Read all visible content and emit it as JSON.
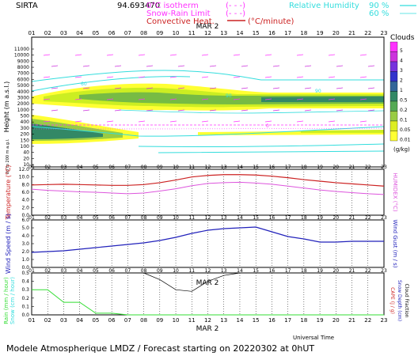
{
  "header": {
    "station": "SIRTA",
    "coord": "94.693470",
    "legend_iso": "0°C isotherm",
    "legend_iso_sym": "(- - -)",
    "legend_snow": "Snow-Rain Limit",
    "legend_snow_sym": "(- - -)",
    "legend_conv": "Convective Heat.",
    "legend_conv_unit": "(°C/minute)",
    "rh_label": "Relative Humidity",
    "rh_90": "90 %",
    "rh_60": "60 %"
  },
  "footer": {
    "text": "Modele Atmospherique LMDZ / Forecast starting on 20220302 at 0hUT",
    "time_label": "Universal Time",
    "date_label": "MAR  2"
  },
  "axes": {
    "hours": [
      "01",
      "02",
      "03",
      "04",
      "05",
      "06",
      "07",
      "08",
      "09",
      "10",
      "11",
      "12",
      "13",
      "14",
      "15",
      "16",
      "17",
      "18",
      "19",
      "20",
      "21",
      "22",
      "23"
    ],
    "date_label": "MAR  2"
  },
  "colors": {
    "temperature": "#cc2222",
    "humidex": "#dd55dd",
    "wind": "#2222bb",
    "rain": "#33dd33",
    "cloud": "#000000",
    "rh": "#33dddd",
    "isotherm": "#ff33ff",
    "cloud_scale": [
      "#ffff33",
      "#ddee22",
      "#99cc44",
      "#55aa55",
      "#338866",
      "#336699",
      "#3333cc",
      "#7733dd",
      "#cc33dd",
      "#ff33ff"
    ]
  },
  "chart_data": [
    {
      "type": "heatmap",
      "panel": "clouds",
      "ylabel": "Height  (m a.s.l.)",
      "ylabel2": "Up to 200 m a.g.l.",
      "yticks": [
        "11000",
        "10000",
        "9000",
        "8000",
        "7000",
        "6000",
        "5000",
        "4000",
        "3000",
        "2000",
        "1000",
        "500",
        "400",
        "300",
        "200",
        "150",
        "100",
        "40",
        "20",
        "10"
      ],
      "legend_title": "Clouds",
      "legend_unit": "(g/kg)",
      "legend_ticks": [
        "5",
        "4",
        "3",
        "2",
        "1",
        "0.5",
        "0.2",
        "0.1",
        "0.05",
        "0.01"
      ],
      "rh_contour_labels": [
        "60",
        "90"
      ],
      "iso_label": "0"
    },
    {
      "type": "line",
      "panel": "temperature",
      "ylabel": "Temperature (°C)",
      "ylabel_right": "HUMIDEX (°C)",
      "yticks": [
        "0.0",
        "2.0",
        "4.0",
        "6.0",
        "8.0",
        "10.0",
        "12.0"
      ],
      "ylim": [
        0,
        12
      ],
      "x": [
        1,
        2,
        3,
        4,
        5,
        6,
        7,
        8,
        9,
        10,
        11,
        12,
        13,
        14,
        15,
        16,
        17,
        18,
        19,
        20,
        21,
        22,
        23
      ],
      "series": [
        {
          "values": [
            7.9,
            8.0,
            8.1,
            8.0,
            7.9,
            7.8,
            7.8,
            8.0,
            8.5,
            9.2,
            10.0,
            10.4,
            10.6,
            10.6,
            10.5,
            10.2,
            9.8,
            9.3,
            8.9,
            8.5,
            8.2,
            7.9,
            7.6
          ]
        },
        {
          "values": [
            6.8,
            6.5,
            6.3,
            6.1,
            6.0,
            5.8,
            5.6,
            5.8,
            6.3,
            6.9,
            7.7,
            8.3,
            8.5,
            8.6,
            8.4,
            8.1,
            7.6,
            7.1,
            6.6,
            6.2,
            5.9,
            5.6,
            5.4
          ]
        }
      ]
    },
    {
      "type": "line",
      "panel": "wind",
      "ylabel": "Wind Speed (m / s)",
      "ylabel_right": "Wind Gust (m / s)",
      "yticks": [
        "0.0",
        "1.0",
        "2.0",
        "3.0",
        "4.0",
        "5.0",
        "6.0"
      ],
      "ylim": [
        0,
        6
      ],
      "x": [
        1,
        2,
        3,
        4,
        5,
        6,
        7,
        8,
        9,
        10,
        11,
        12,
        13,
        14,
        15,
        16,
        17,
        18,
        19,
        20,
        21,
        22,
        23
      ],
      "series": [
        {
          "values": [
            1.9,
            2.0,
            2.1,
            2.3,
            2.5,
            2.7,
            2.9,
            3.1,
            3.4,
            3.8,
            4.3,
            4.7,
            4.9,
            5.0,
            5.1,
            4.5,
            3.9,
            3.6,
            3.2,
            3.2,
            3.3,
            3.3,
            3.3
          ]
        }
      ]
    },
    {
      "type": "line",
      "panel": "precip",
      "ylabel": "Rain (mm / hour)",
      "ylabel2": "Snow (cm / hour)",
      "ylabel_right": "CAPE (J / g)",
      "ylabel_right2": "Snow Depth (cm)",
      "ylabel_right3": "Cloud Fraction",
      "yticks": [
        "0.0",
        "0.1",
        "0.2",
        "0.3",
        "0.4",
        "0.5"
      ],
      "ylim": [
        0,
        0.5
      ],
      "x": [
        1,
        2,
        3,
        4,
        5,
        6,
        7,
        8,
        9,
        10,
        11,
        12,
        13,
        14,
        15,
        16,
        17,
        18,
        19,
        20,
        21,
        22,
        23
      ],
      "series": [
        {
          "values": [
            0.3,
            0.3,
            0.15,
            0.15,
            0.02,
            0.02,
            0,
            0,
            0,
            0,
            0,
            0,
            0,
            0,
            0,
            0,
            0,
            0,
            0,
            0,
            0,
            0,
            0
          ]
        },
        {
          "values": [
            0.5,
            0.5,
            0.5,
            0.5,
            0.5,
            0.5,
            0.5,
            0.5,
            0.42,
            0.3,
            0.28,
            0.4,
            0.47,
            0.5,
            0.5,
            0.5,
            0.5,
            0.5,
            0.5,
            0.5,
            0.5,
            0.5,
            0.5
          ]
        }
      ]
    }
  ]
}
